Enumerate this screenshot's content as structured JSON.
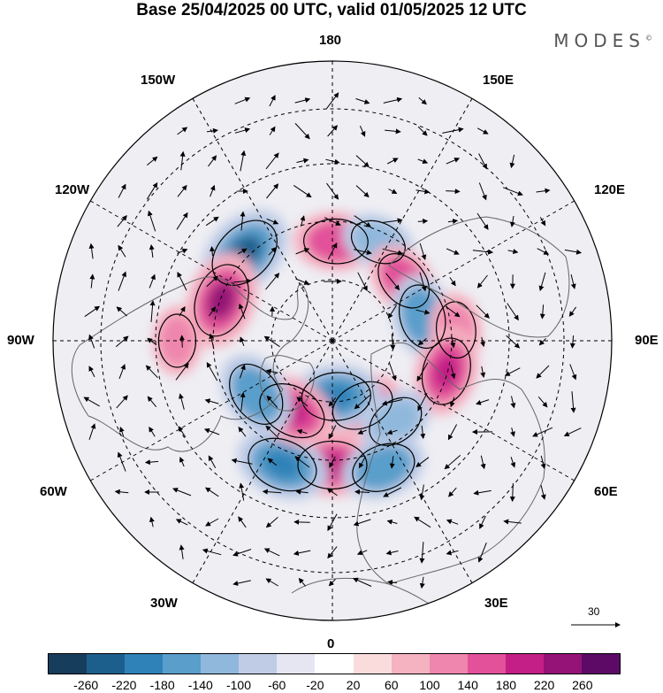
{
  "title": "Base 25/04/2025 00 UTC, valid 01/05/2025 12 UTC",
  "brand": "MODES",
  "brand_mark": "©",
  "longitude_labels": {
    "top": "180",
    "bottom": "0",
    "left": "90W",
    "right": "90E",
    "upper_left_1": "150W",
    "upper_left_2": "120W",
    "upper_right_1": "150E",
    "upper_right_2": "120E",
    "lower_left_1": "60W",
    "lower_left_2": "30W",
    "lower_right_1": "60E",
    "lower_right_2": "30E"
  },
  "reference_vector_label": "30",
  "colorbar": {
    "colors": [
      "#173d5c",
      "#1d5f8c",
      "#2f82b8",
      "#5a9ecb",
      "#8fb8dc",
      "#c0cce6",
      "#e6e6f2",
      "#ffffff",
      "#fbdcdc",
      "#f5b3c2",
      "#ef86ad",
      "#e2519a",
      "#c41f86",
      "#951276",
      "#5c0a66"
    ],
    "ticks": [
      "-260",
      "-220",
      "-180",
      "-140",
      "-100",
      "-60",
      "-20",
      "20",
      "60",
      "100",
      "140",
      "180",
      "220",
      "260"
    ]
  },
  "anomalies": [
    {
      "name": "blue-150W",
      "lon": -135,
      "lat": 50,
      "value": -240
    },
    {
      "name": "pink-120W",
      "lon": -110,
      "lat": 52,
      "value": 230
    },
    {
      "name": "pink-180",
      "lon": 178,
      "lat": 58,
      "value": 170
    },
    {
      "name": "blue-160E",
      "lon": 155,
      "lat": 55,
      "value": -120
    },
    {
      "name": "pink-130E",
      "lon": 130,
      "lat": 60,
      "value": 150
    },
    {
      "name": "blue-110E",
      "lon": 105,
      "lat": 60,
      "value": -170
    },
    {
      "name": "pink-100E",
      "lon": 95,
      "lat": 50,
      "value": 120
    },
    {
      "name": "pink-75E",
      "lon": 75,
      "lat": 52,
      "value": 190
    },
    {
      "name": "pink-25E",
      "lon": 25,
      "lat": 67,
      "value": 160
    },
    {
      "name": "blue-35E",
      "lon": 38,
      "lat": 57,
      "value": -130
    },
    {
      "name": "blue-5E",
      "lon": 4,
      "lat": 72,
      "value": -200
    },
    {
      "name": "pink-0",
      "lon": 0,
      "lat": 50,
      "value": 200
    },
    {
      "name": "blue-20E",
      "lon": 22,
      "lat": 46,
      "value": -170
    },
    {
      "name": "blue-25W",
      "lon": -22,
      "lat": 47,
      "value": -210
    },
    {
      "name": "pink-25W",
      "lon": -30,
      "lat": 64,
      "value": 200
    },
    {
      "name": "blue-55W",
      "lon": -55,
      "lat": 60,
      "value": -180
    },
    {
      "name": "pink-90W",
      "lon": -90,
      "lat": 40,
      "value": 100
    }
  ]
}
